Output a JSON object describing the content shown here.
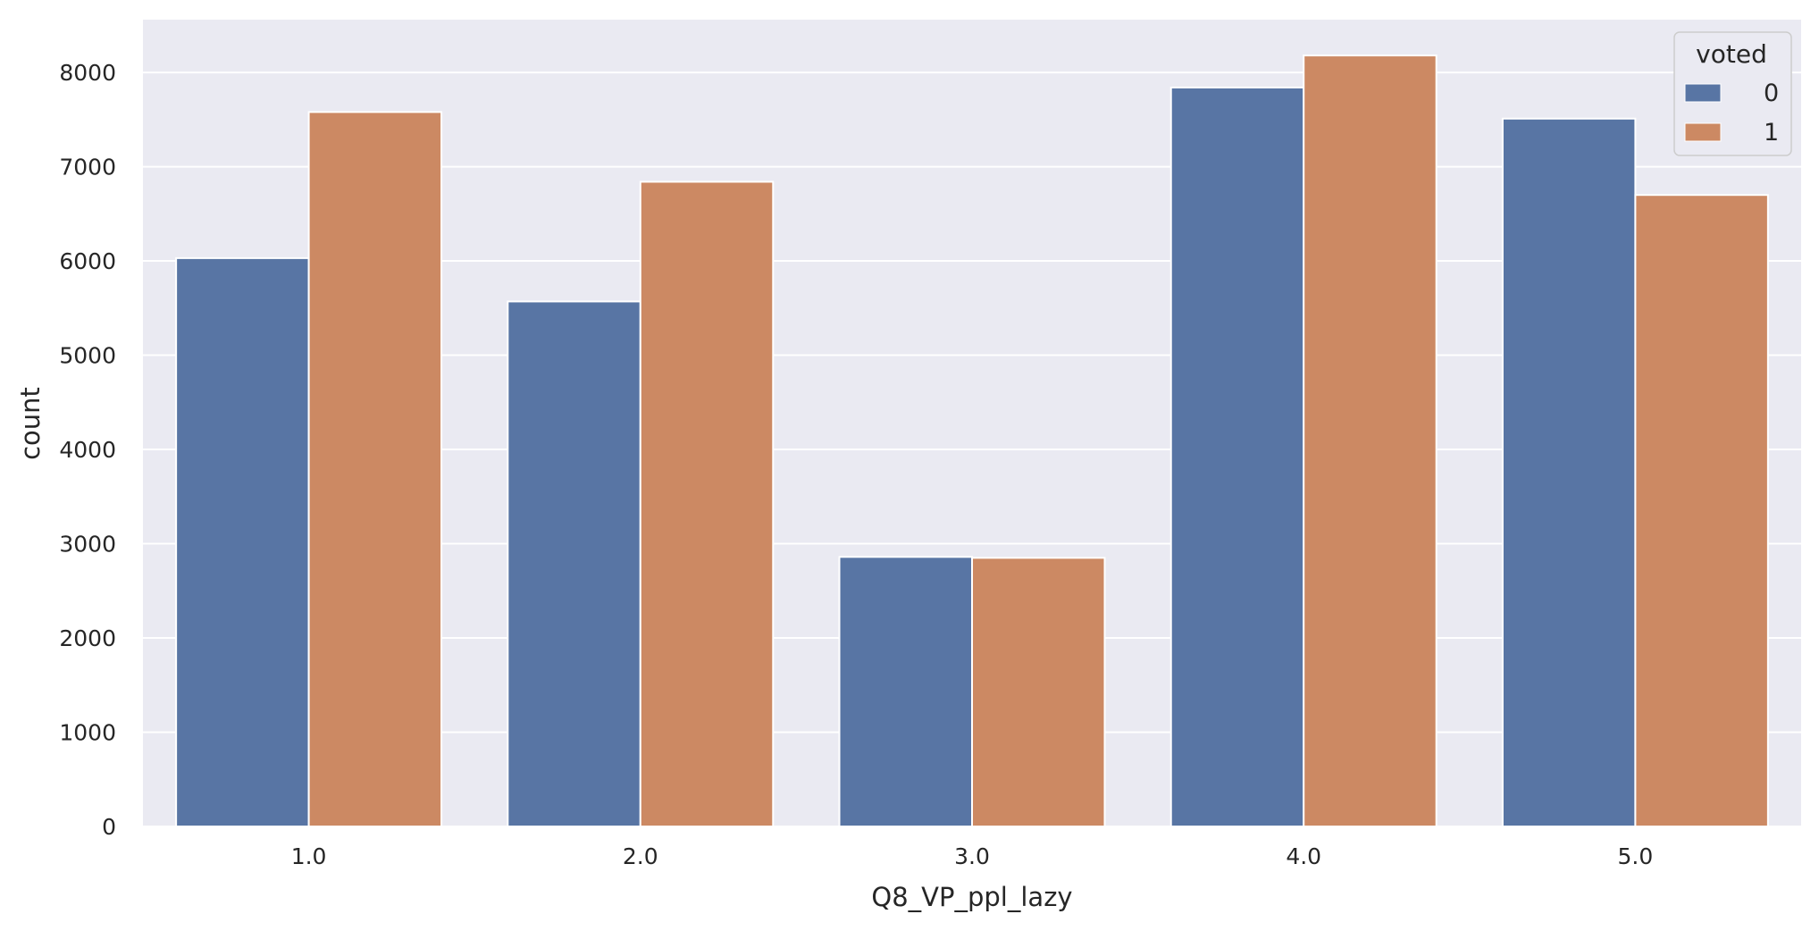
{
  "chart_data": {
    "type": "bar",
    "xlabel": "Q8_VP_ppl_lazy",
    "ylabel": "count",
    "categories": [
      "1.0",
      "2.0",
      "3.0",
      "4.0",
      "5.0"
    ],
    "series": [
      {
        "name": "0",
        "color": "#5875a4",
        "values": [
          6030,
          5570,
          2860,
          7840,
          7510
        ]
      },
      {
        "name": "1",
        "color": "#cc8963",
        "values": [
          7580,
          6840,
          2850,
          8180,
          6700
        ]
      }
    ],
    "ylim": [
      0,
      8560
    ],
    "yticks": [
      "0",
      "1000",
      "2000",
      "3000",
      "4000",
      "5000",
      "6000",
      "7000",
      "8000"
    ],
    "grid": true,
    "legend": {
      "title": "voted",
      "position": "top-right"
    },
    "background": "#eaeaf2"
  }
}
